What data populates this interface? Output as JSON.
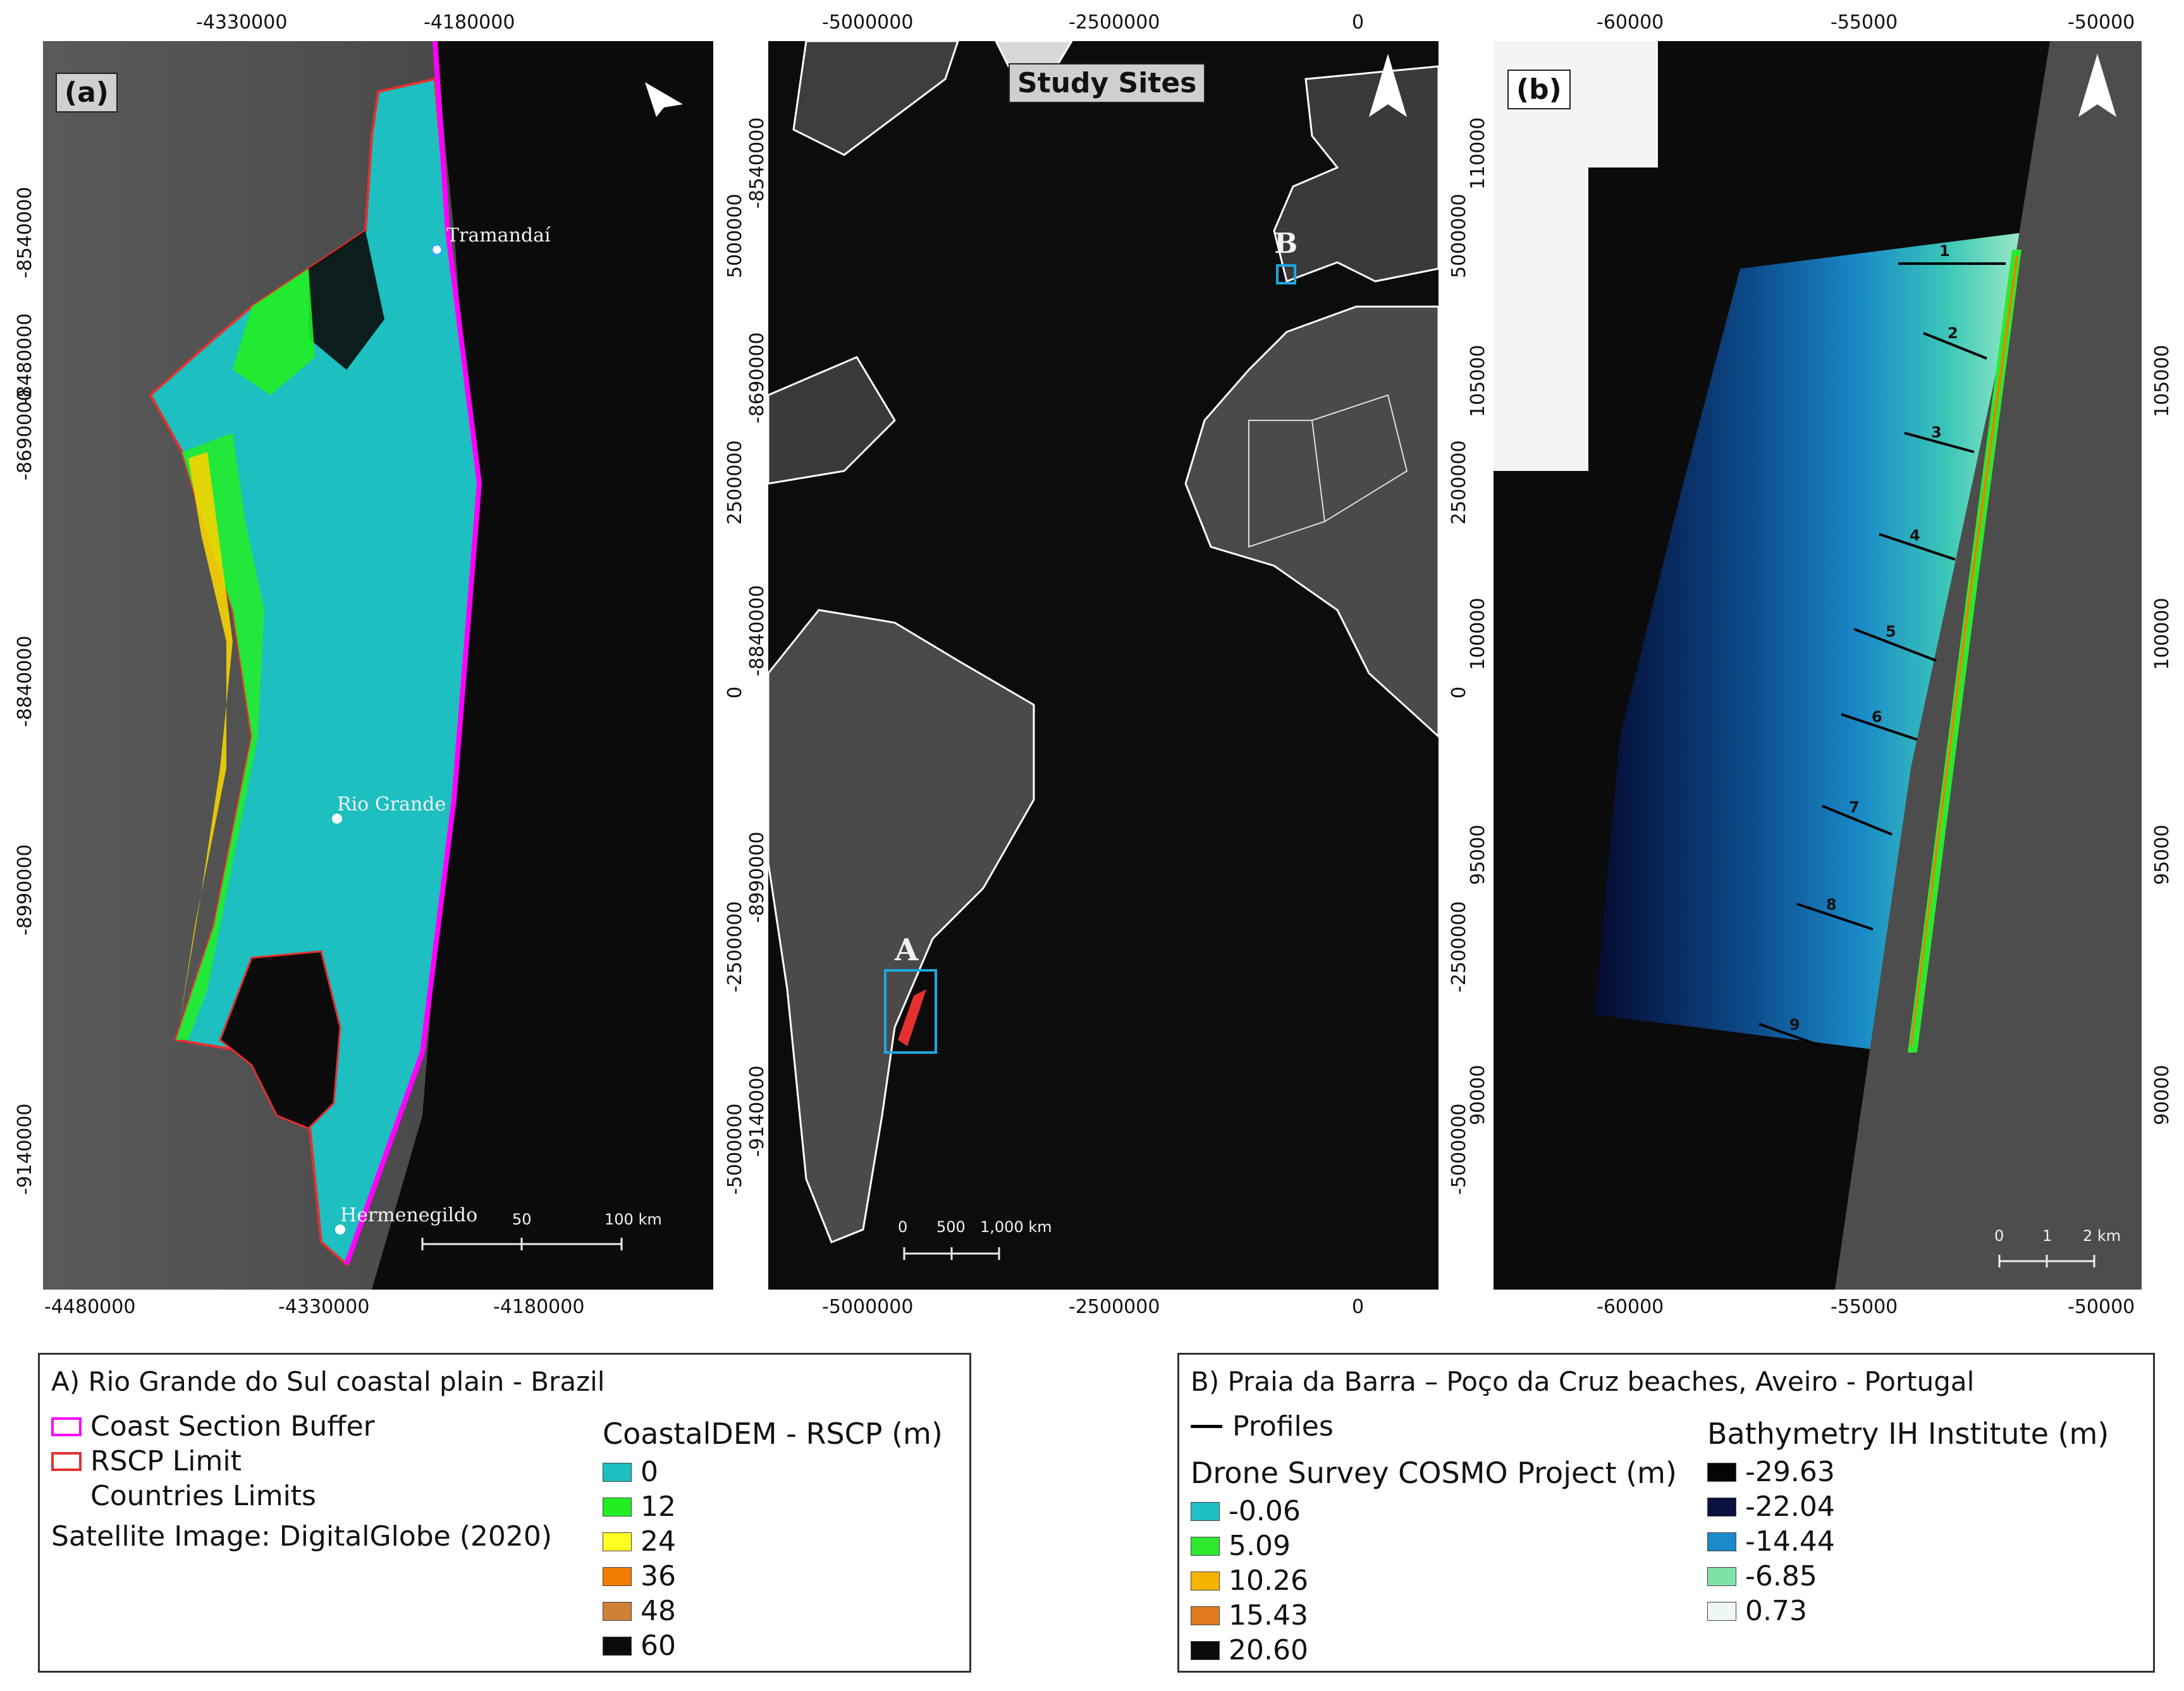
{
  "panel_a": {
    "tag": "(a)",
    "top_ticks": [
      "-4330000",
      "-4180000"
    ],
    "bottom_ticks": [
      "-4480000",
      "-4330000",
      "-4180000"
    ],
    "left_ticks": [
      "-8540000",
      "-8690000",
      "-8840000",
      "-8990000",
      "-9140000"
    ],
    "overlap_label": "-8480000",
    "places": [
      "Tramandaí",
      "Rio Grande",
      "Hermenegildo"
    ],
    "scale_labels": [
      "50",
      "100 km"
    ],
    "north_arrow": "north-arrow-icon"
  },
  "panel_mid": {
    "title": "Study Sites",
    "top_ticks": [
      "-5000000",
      "-2500000",
      "0"
    ],
    "bottom_ticks": [
      "-5000000",
      "-2500000",
      "0"
    ],
    "left_ticks": [
      "5000000",
      "2500000",
      "0",
      "-2500000",
      "-5000000"
    ],
    "right_ticks": [
      "-8540000",
      "-8690000",
      "-8840000",
      "-8990000",
      "-9140000"
    ],
    "right2_ticks": [
      "5000000",
      "2500000",
      "0",
      "-2500000",
      "-5000000"
    ],
    "site_a": "A",
    "site_b": "B",
    "scale_labels": [
      "0",
      "500",
      "1,000 km"
    ],
    "north_arrow": "north-arrow-icon"
  },
  "panel_b": {
    "tag": "(b)",
    "top_ticks": [
      "-60000",
      "-55000",
      "-50000"
    ],
    "bottom_ticks": [
      "-60000",
      "-55000",
      "-50000"
    ],
    "left_ticks": [
      "110000",
      "105000",
      "100000",
      "95000",
      "90000"
    ],
    "right_ticks": [
      "105000",
      "100000",
      "95000",
      "90000"
    ],
    "profiles": [
      "1",
      "2",
      "3",
      "4",
      "5",
      "6",
      "7",
      "8",
      "9"
    ],
    "scale_labels": [
      "0",
      "1",
      "2 km"
    ],
    "north_arrow": "north-arrow-icon"
  },
  "legend_a": {
    "title": "A) Rio Grande do Sul coastal plain - Brazil",
    "items": [
      {
        "label": "Coast Section Buffer",
        "color": "#ff00ff"
      },
      {
        "label": "RSCP Limit",
        "color": "#e53030"
      },
      {
        "label": "Countries Limits",
        "color": "#ffffff"
      }
    ],
    "source": "Satellite Image: DigitalGlobe (2020)",
    "dem_title": "CoastalDEM - RSCP (m)",
    "dem": [
      {
        "label": "0",
        "color": "#1dbfc0"
      },
      {
        "label": "12",
        "color": "#22ee22"
      },
      {
        "label": "24",
        "color": "#ffff22"
      },
      {
        "label": "36",
        "color": "#f07d00"
      },
      {
        "label": "48",
        "color": "#cf8236"
      },
      {
        "label": "60",
        "color": "#0b0b0b"
      }
    ]
  },
  "legend_b": {
    "title": "B) Praia da Barra – Poço da Cruz beaches, Aveiro - Portugal",
    "profiles_label": "Profiles",
    "drone_title": "Drone Survey COSMO Project (m)",
    "drone": [
      {
        "label": "-0.06",
        "color": "#1fbfc6"
      },
      {
        "label": "5.09",
        "color": "#2ee82e"
      },
      {
        "label": "10.26",
        "color": "#f5b400"
      },
      {
        "label": "15.43",
        "color": "#e07a1c"
      },
      {
        "label": "20.60",
        "color": "#0b0b0b"
      }
    ],
    "bathy_title": "Bathymetry IH Institute (m)",
    "bathy": [
      {
        "label": "-29.63",
        "color": "#050505"
      },
      {
        "label": "-22.04",
        "color": "#0a1240"
      },
      {
        "label": "-14.44",
        "color": "#1a8ac8"
      },
      {
        "label": "-6.85",
        "color": "#7fe0a8"
      },
      {
        "label": "0.73",
        "color": "#eef7f5"
      }
    ]
  }
}
